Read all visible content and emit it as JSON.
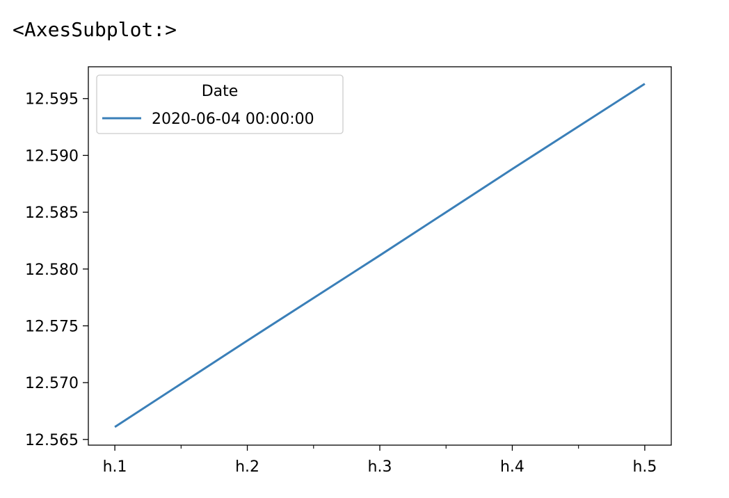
{
  "output_repr": "<AxesSubplot:>",
  "chart_data": {
    "type": "line",
    "categories": [
      "h.1",
      "h.2",
      "h.3",
      "h.4",
      "h.5"
    ],
    "series": [
      {
        "name": "2020-06-04 00:00:00",
        "values": [
          12.5661,
          12.5737,
          12.5812,
          12.5888,
          12.5963
        ],
        "color": "#3a7fb8"
      }
    ],
    "legend": {
      "title": "Date",
      "placement": "upper-left"
    },
    "xlim": [
      -0.2,
      4.2
    ],
    "ylim": [
      12.5645,
      12.5978
    ],
    "yticks": [
      12.565,
      12.57,
      12.575,
      12.58,
      12.585,
      12.59,
      12.595
    ],
    "ytick_labels": [
      "12.565",
      "12.570",
      "12.575",
      "12.580",
      "12.585",
      "12.590",
      "12.595"
    ],
    "minor_xticks": [
      0.5,
      1.5,
      2.5,
      3.5
    ],
    "grid": false,
    "title": "",
    "xlabel": "",
    "ylabel": ""
  }
}
